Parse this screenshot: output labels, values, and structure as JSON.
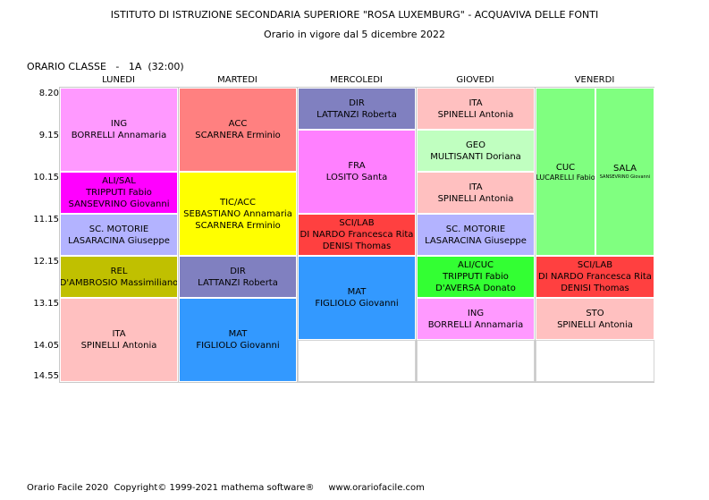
{
  "header": {
    "school": "ISTITUTO DI ISTRUZIONE SECONDARIA SUPERIORE \"ROSA LUXEMBURG\" - ACQUAVIVA DELLE FONTI",
    "validity": "Orario in vigore dal 5 dicembre 2022",
    "class_title": "ORARIO CLASSE   -   1A  (32:00)"
  },
  "days": [
    "LUNEDI",
    "MARTEDI",
    "MERCOLEDI",
    "GIOVEDI",
    "VENERDI"
  ],
  "times": [
    "8.20",
    "9.15",
    "10.15",
    "11.15",
    "12.15",
    "13.15",
    "14.05",
    "14.55"
  ],
  "colors": {
    "ing": "#ff99ff",
    "acc": "#ff8080",
    "dir": "#8080c0",
    "ita": "#ffc0c0",
    "geo": "#c0ffc0",
    "fra": "#ff80ff",
    "cuc_sala": "#80ff80",
    "ali_sal": "#ff00ff",
    "tic_acc": "#ffff00",
    "sc_motorie": "#b3b3ff",
    "sci_lab": "#ff4040",
    "rel": "#c0c000",
    "mat": "#3399ff",
    "ali_cuc": "#33ff33",
    "sto": "#ffc0c0"
  },
  "lessons": [
    {
      "id": "lun-ing",
      "lines": [
        "ING",
        "BORRELLI Annamaria"
      ]
    },
    {
      "id": "lun-ali-sal",
      "lines": [
        "ALI/SAL",
        "TRIPPUTI Fabio",
        "SANSEVRINO Giovanni"
      ]
    },
    {
      "id": "lun-sc-motorie",
      "lines": [
        "SC. MOTORIE",
        "LASARACINA Giuseppe"
      ]
    },
    {
      "id": "lun-rel",
      "lines": [
        "REL",
        "D'AMBROSIO Massimiliano"
      ]
    },
    {
      "id": "lun-ita",
      "lines": [
        "ITA",
        "SPINELLI Antonia"
      ]
    },
    {
      "id": "mar-acc",
      "lines": [
        "ACC",
        "SCARNERA Erminio"
      ]
    },
    {
      "id": "mar-tic-acc",
      "lines": [
        "TIC/ACC",
        "SEBASTIANO Annamaria",
        "SCARNERA Erminio"
      ]
    },
    {
      "id": "mar-dir",
      "lines": [
        "DIR",
        "LATTANZI Roberta"
      ]
    },
    {
      "id": "mar-mat",
      "lines": [
        "MAT",
        "FIGLIOLO Giovanni"
      ]
    },
    {
      "id": "mer-dir",
      "lines": [
        "DIR",
        "LATTANZI Roberta"
      ]
    },
    {
      "id": "mer-fra",
      "lines": [
        "FRA",
        "LOSITO Santa"
      ]
    },
    {
      "id": "mer-sci-lab",
      "lines": [
        "SCI/LAB",
        "DI NARDO Francesca Rita",
        "DENISI Thomas"
      ]
    },
    {
      "id": "mer-mat",
      "lines": [
        "MAT",
        "FIGLIOLO Giovanni"
      ]
    },
    {
      "id": "gio-ita-1",
      "lines": [
        "ITA",
        "SPINELLI Antonia"
      ]
    },
    {
      "id": "gio-geo",
      "lines": [
        "GEO",
        "MULTISANTI Doriana"
      ]
    },
    {
      "id": "gio-ita-2",
      "lines": [
        "ITA",
        "SPINELLI Antonia"
      ]
    },
    {
      "id": "gio-sc-motorie",
      "lines": [
        "SC. MOTORIE",
        "LASARACINA Giuseppe"
      ]
    },
    {
      "id": "gio-ali-cuc",
      "lines": [
        "ALI/CUC",
        "TRIPPUTI Fabio",
        "D'AVERSA Donato"
      ]
    },
    {
      "id": "gio-ing",
      "lines": [
        "ING",
        "BORRELLI Annamaria"
      ]
    },
    {
      "id": "ven-cuc",
      "lines": [
        "CUC",
        "LUCARELLI Fabio"
      ]
    },
    {
      "id": "ven-sala",
      "lines": [
        "SALA",
        "SANSEVRINO Giovanni"
      ]
    },
    {
      "id": "ven-sci-lab",
      "lines": [
        "SCI/LAB",
        "DI NARDO Francesca Rita",
        "DENISI Thomas"
      ]
    },
    {
      "id": "ven-sto",
      "lines": [
        "STO",
        "SPINELLI Antonia"
      ]
    }
  ],
  "footer": "Orario Facile 2020  Copyright© 1999-2021 mathema software®     www.orariofacile.com"
}
